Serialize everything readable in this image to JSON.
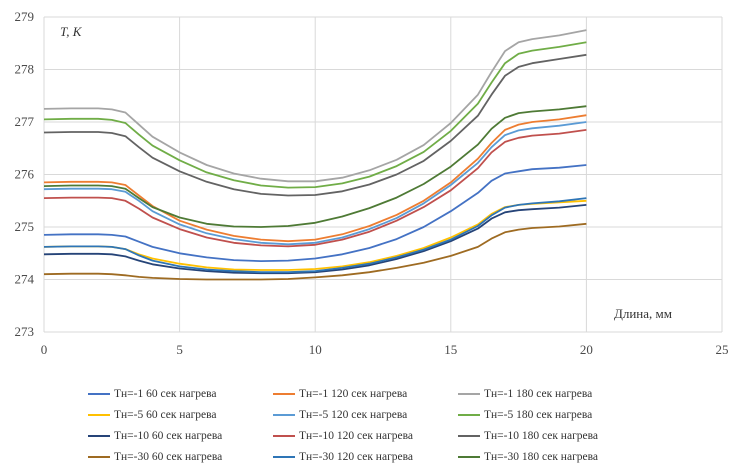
{
  "chart_data": {
    "type": "line",
    "ylabel": "T, K",
    "xlabel": "Длина, мм",
    "xlim": [
      0,
      25
    ],
    "ylim": [
      273,
      279
    ],
    "x_ticks": [
      "0",
      "5",
      "10",
      "15",
      "20",
      "25"
    ],
    "y_ticks": [
      "273",
      "274",
      "275",
      "276",
      "277",
      "278",
      "279"
    ],
    "grid": true,
    "legend_position": "bottom",
    "x": [
      0,
      1,
      2,
      2.5,
      3,
      3.5,
      4,
      5,
      6,
      7,
      8,
      9,
      10,
      11,
      12,
      13,
      14,
      15,
      16,
      16.5,
      17,
      17.5,
      18,
      19,
      20
    ],
    "series": [
      {
        "name": "Тн=-1  60 сек нагрева",
        "color": "#4472c4",
        "values": [
          274.85,
          274.86,
          274.86,
          274.85,
          274.82,
          274.72,
          274.62,
          274.5,
          274.42,
          274.37,
          274.35,
          274.36,
          274.4,
          274.48,
          274.6,
          274.77,
          275.0,
          275.3,
          275.65,
          275.88,
          276.02,
          276.06,
          276.1,
          276.13,
          276.18
        ]
      },
      {
        "name": "Тн=-1  120 сек нагрева",
        "color": "#ed7d31",
        "values": [
          275.85,
          275.86,
          275.86,
          275.85,
          275.8,
          275.6,
          275.4,
          275.12,
          274.95,
          274.83,
          274.76,
          274.73,
          274.76,
          274.86,
          275.02,
          275.23,
          275.5,
          275.85,
          276.3,
          276.6,
          276.85,
          276.95,
          277.0,
          277.05,
          277.13
        ]
      },
      {
        "name": "Тн=-1 180 сек нагрева",
        "color": "#a5a5a5",
        "values": [
          277.25,
          277.26,
          277.26,
          277.24,
          277.18,
          276.95,
          276.72,
          276.42,
          276.18,
          276.02,
          275.92,
          275.87,
          275.87,
          275.94,
          276.08,
          276.28,
          276.56,
          276.98,
          277.52,
          277.95,
          278.35,
          278.52,
          278.58,
          278.65,
          278.75
        ]
      },
      {
        "name": "Тн=-5  60 сек нагрева",
        "color": "#ffc000",
        "values": [
          274.62,
          274.63,
          274.63,
          274.62,
          274.58,
          274.48,
          274.4,
          274.3,
          274.23,
          274.19,
          274.18,
          274.18,
          274.2,
          274.25,
          274.33,
          274.45,
          274.6,
          274.8,
          275.05,
          275.25,
          275.38,
          275.42,
          275.44,
          275.47,
          275.5
        ]
      },
      {
        "name": "Тн=-5  120 сек нагрева",
        "color": "#5b9bd5",
        "values": [
          275.72,
          275.73,
          275.73,
          275.72,
          275.67,
          275.5,
          275.3,
          275.05,
          274.88,
          274.77,
          274.7,
          274.67,
          274.7,
          274.8,
          274.96,
          275.17,
          275.45,
          275.8,
          276.22,
          276.52,
          276.75,
          276.84,
          276.88,
          276.93,
          277.0
        ]
      },
      {
        "name": "Тн=-5  180 сек нагрева",
        "color": "#70ad47",
        "values": [
          277.05,
          277.06,
          277.06,
          277.04,
          276.98,
          276.76,
          276.55,
          276.27,
          276.04,
          275.89,
          275.79,
          275.75,
          275.76,
          275.83,
          275.96,
          276.16,
          276.43,
          276.83,
          277.35,
          277.75,
          278.12,
          278.3,
          278.36,
          278.43,
          278.52
        ]
      },
      {
        "name": "Тн=-10 60 сек нагрева",
        "color": "#264478",
        "values": [
          274.48,
          274.49,
          274.49,
          274.48,
          274.44,
          274.36,
          274.29,
          274.21,
          274.16,
          274.13,
          274.12,
          274.12,
          274.14,
          274.19,
          274.27,
          274.39,
          274.54,
          274.73,
          274.97,
          275.16,
          275.28,
          275.32,
          275.34,
          275.37,
          275.42
        ]
      },
      {
        "name": "Тн=-10 120 сек нагрева",
        "color": "#c0504d",
        "values": [
          275.55,
          275.56,
          275.56,
          275.55,
          275.5,
          275.35,
          275.18,
          274.96,
          274.8,
          274.7,
          274.65,
          274.63,
          274.66,
          274.76,
          274.91,
          275.12,
          275.38,
          275.7,
          276.12,
          276.42,
          276.62,
          276.7,
          276.74,
          276.78,
          276.85
        ]
      },
      {
        "name": "Тн=-10 180 сек нагрева",
        "color": "#636363",
        "values": [
          276.8,
          276.81,
          276.81,
          276.79,
          276.73,
          276.52,
          276.32,
          276.06,
          275.86,
          275.72,
          275.63,
          275.6,
          275.61,
          275.68,
          275.81,
          276.0,
          276.26,
          276.64,
          277.12,
          277.52,
          277.88,
          278.05,
          278.12,
          278.2,
          278.28
        ]
      },
      {
        "name": "Тн=-30  60 сек нагрева",
        "color": "#9e6b22",
        "values": [
          274.1,
          274.11,
          274.11,
          274.1,
          274.08,
          274.05,
          274.03,
          274.01,
          274.0,
          274.0,
          274.0,
          274.01,
          274.04,
          274.08,
          274.14,
          274.22,
          274.32,
          274.45,
          274.62,
          274.78,
          274.9,
          274.95,
          274.98,
          275.01,
          275.06
        ]
      },
      {
        "name": "Тн=-30  120 сек нагрева",
        "color": "#2e75b6",
        "values": [
          274.62,
          274.63,
          274.63,
          274.62,
          274.58,
          274.46,
          274.36,
          274.25,
          274.19,
          274.16,
          274.14,
          274.14,
          274.16,
          274.22,
          274.3,
          274.42,
          274.57,
          274.76,
          275.02,
          275.22,
          275.37,
          275.42,
          275.45,
          275.49,
          275.55
        ]
      },
      {
        "name": "Тн=-30  180 сек нагрева",
        "color": "#4e7a35",
        "values": [
          275.78,
          275.79,
          275.79,
          275.78,
          275.73,
          275.55,
          275.38,
          275.18,
          275.06,
          275.01,
          275.0,
          275.02,
          275.08,
          275.2,
          275.36,
          275.56,
          275.82,
          276.15,
          276.57,
          276.87,
          277.08,
          277.17,
          277.2,
          277.24,
          277.3
        ]
      }
    ]
  }
}
